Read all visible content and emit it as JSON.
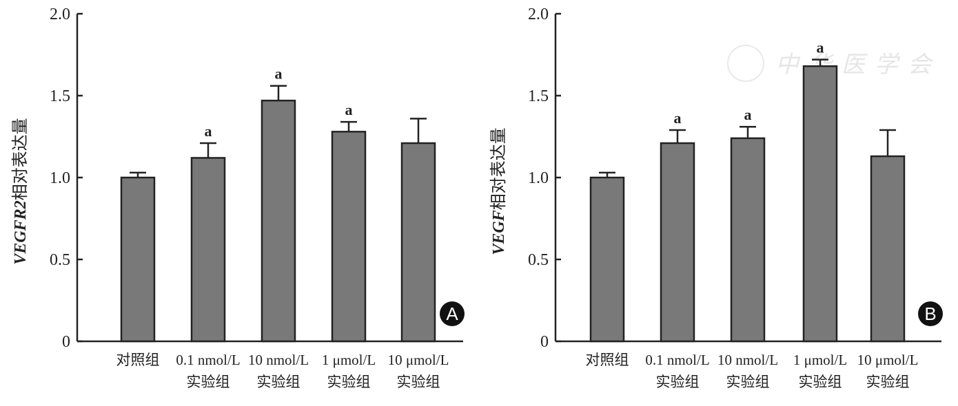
{
  "watermark": "中华医学会",
  "chart_data": [
    {
      "type": "bar",
      "panel_label": "A",
      "ylabel_gene": "VEGFR2",
      "ylabel_suffix": "相对表达量",
      "ylim": [
        0,
        2.0
      ],
      "yticks": [
        "0",
        "0.5",
        "1.0",
        "1.5",
        "2.0"
      ],
      "categories": [
        [
          "对照组",
          ""
        ],
        [
          "0.1 nmol/L",
          "实验组"
        ],
        [
          "10 nmol/L",
          "实验组"
        ],
        [
          "1 μmol/L",
          "实验组"
        ],
        [
          "10 μmol/L",
          "实验组"
        ]
      ],
      "values": [
        1.0,
        1.12,
        1.47,
        1.28,
        1.21
      ],
      "error_upper": [
        1.03,
        1.21,
        1.56,
        1.34,
        1.36
      ],
      "significance": [
        "",
        "a",
        "a",
        "a",
        ""
      ],
      "bar_color": "#7a797a"
    },
    {
      "type": "bar",
      "panel_label": "B",
      "ylabel_gene": "VEGF",
      "ylabel_suffix": "相对表达量",
      "ylim": [
        0,
        2.0
      ],
      "yticks": [
        "0",
        "0.5",
        "1.0",
        "1.5",
        "2.0"
      ],
      "categories": [
        [
          "对照组",
          ""
        ],
        [
          "0.1 nmol/L",
          "实验组"
        ],
        [
          "10 nmol/L",
          "实验组"
        ],
        [
          "1 μmol/L",
          "实验组"
        ],
        [
          "10 μmol/L",
          "实验组"
        ]
      ],
      "values": [
        1.0,
        1.21,
        1.24,
        1.68,
        1.13
      ],
      "error_upper": [
        1.03,
        1.29,
        1.31,
        1.72,
        1.29
      ],
      "significance": [
        "",
        "a",
        "a",
        "a",
        ""
      ],
      "bar_color": "#7a797a"
    }
  ]
}
